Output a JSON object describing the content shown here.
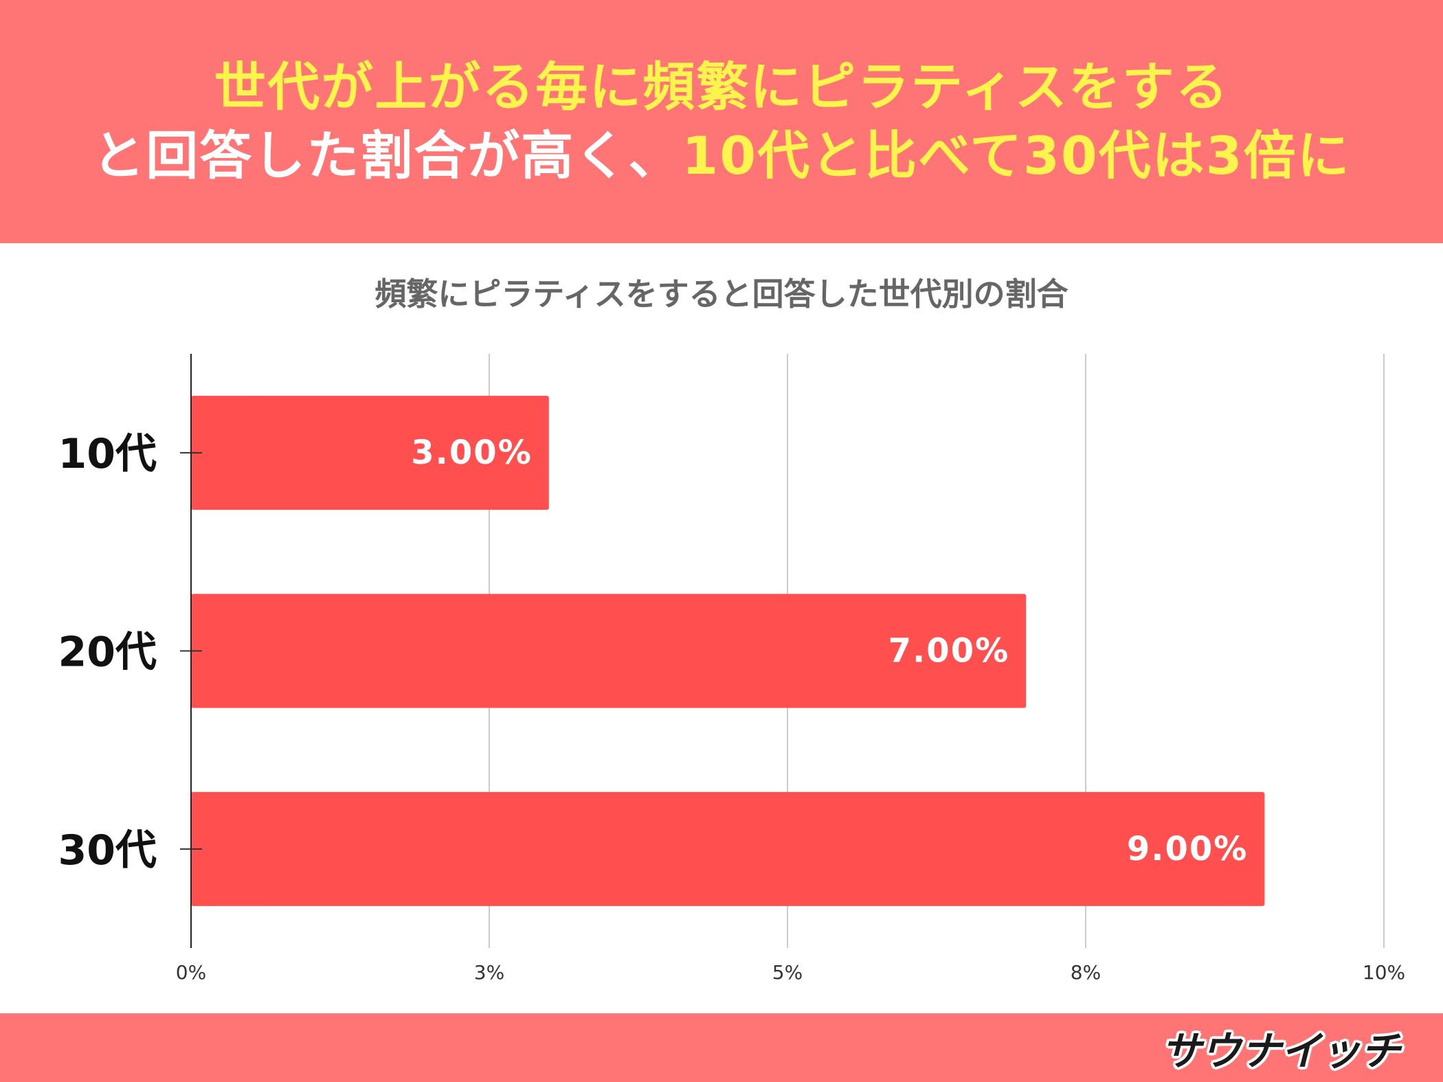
{
  "header": {
    "line1": [
      {
        "text": "世代が上がる毎に頻繁にピラティスをする",
        "color": "yellow"
      }
    ],
    "line2": [
      {
        "text": "と回答した割合が高く、",
        "color": "white"
      },
      {
        "text": "10代と比べて30代は3倍に",
        "color": "yellow"
      }
    ]
  },
  "colors": {
    "header_bg": "#ff7474",
    "highlight": "#fff44d",
    "bar": "#ff4f4f",
    "footer_bg": "#ff7474"
  },
  "chart_data": {
    "type": "bar",
    "orientation": "horizontal",
    "title": "頻繁にピラティスをすると回答した世代別の割合",
    "categories": [
      "10代",
      "20代",
      "30代"
    ],
    "values": [
      3.0,
      7.0,
      9.0
    ],
    "value_labels": [
      "3.00%",
      "7.00%",
      "9.00%"
    ],
    "xlim": [
      0,
      10
    ],
    "ticks": [
      {
        "value": 0,
        "label": "0%"
      },
      {
        "value": 2.5,
        "label": "3%"
      },
      {
        "value": 5,
        "label": "5%"
      },
      {
        "value": 7.5,
        "label": "8%"
      },
      {
        "value": 10,
        "label": "10%"
      }
    ],
    "grid": true,
    "legend": "none"
  },
  "footer": {
    "logo_text": "サウナイッチ",
    "logo_icon": "sauna-hat-logo-icon"
  }
}
